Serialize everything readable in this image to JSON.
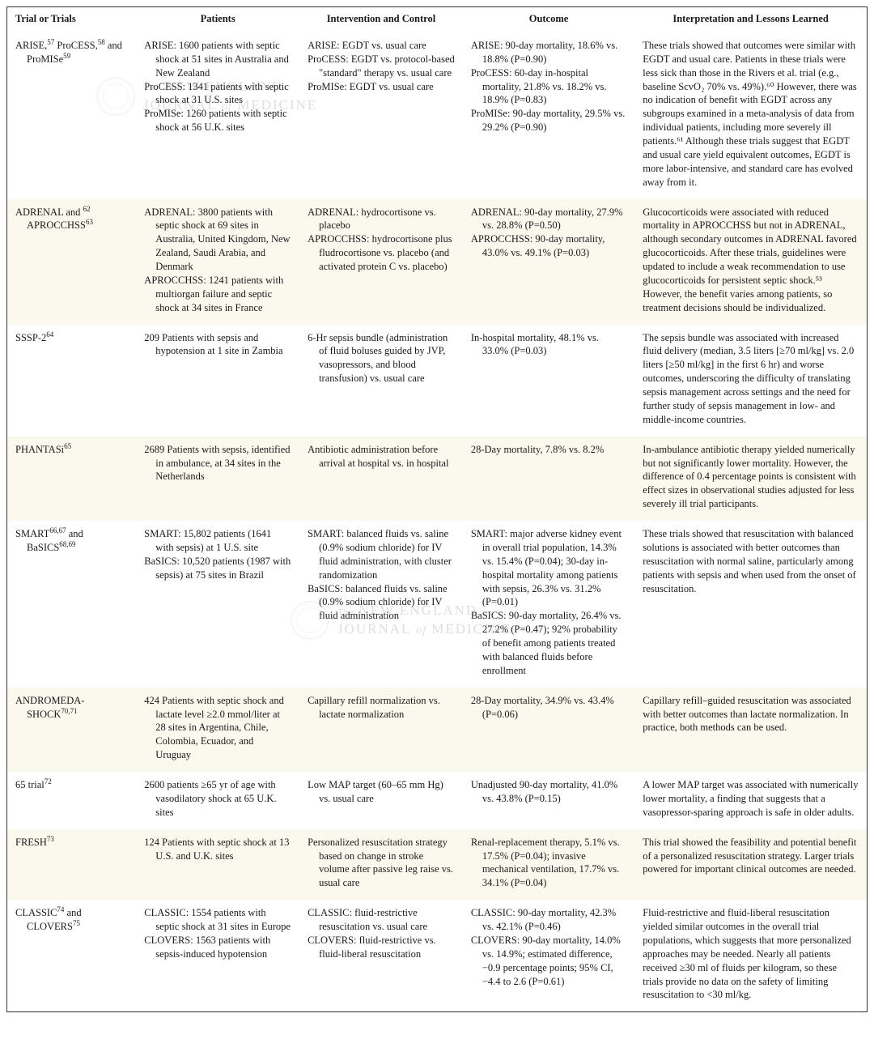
{
  "colors": {
    "alt_row_bg": "#fbf8ee",
    "border": "#333333",
    "text": "#1a1a1a",
    "watermark_seal": "#cc9999"
  },
  "headers": {
    "c1": "Trial or Trials",
    "c2": "Patients",
    "c3": "Intervention and Control",
    "c4": "Outcome",
    "c5": "Interpretation and Lessons Learned"
  },
  "watermark": {
    "line1_pre": "The",
    "line1_main": "NEW ENGLAND",
    "line2_main": "JOURNAL",
    "line2_of": "of",
    "line2_end": "MEDICINE"
  },
  "rows": [
    {
      "trial_parts": [
        "ARISE,",
        "57",
        " ProCESS,",
        "58",
        " and ProMISe",
        "59"
      ],
      "patients": [
        "ARISE: 1600 patients with septic shock at 51 sites in Australia and New Zealand",
        "ProCESS: 1341 patients with septic shock at 31 U.S. sites",
        "ProMISe: 1260 patients with septic shock at 56 U.K. sites"
      ],
      "intervention": [
        "ARISE: EGDT vs. usual care",
        "ProCESS: EGDT vs. protocol-based \"standard\" therapy vs. usual care",
        "ProMISe: EGDT vs. usual care"
      ],
      "outcome": [
        "ARISE: 90-day mortality, 18.6% vs. 18.8% (P=0.90)",
        "ProCESS: 60-day in-hospital mortality, 21.8% vs. 18.2% vs. 18.9% (P=0.83)",
        "ProMISe: 90-day mortality, 29.5% vs. 29.2% (P=0.90)"
      ],
      "interp": "These trials showed that outcomes were similar with EGDT and usual care. Patients in these trials were less sick than those in the Rivers et al. trial (e.g., baseline ScvO₂ 70% vs. 49%).⁶⁰ However, there was no indication of benefit with EGDT across any subgroups examined in a meta-analysis of data from individual patients, including more severely ill patients.⁶¹ Although these trials suggest that EGDT and usual care yield equivalent outcomes, EGDT is more labor-intensive, and standard care has evolved away from it."
    },
    {
      "trial_parts": [
        "ADRENAL and ",
        "62",
        " APROCCHSS",
        "63"
      ],
      "patients": [
        "ADRENAL: 3800 patients with septic shock at 69 sites in Australia, United Kingdom, New Zealand, Saudi Arabia, and Denmark",
        "APROCCHSS: 1241 patients with multiorgan failure and septic shock at 34 sites in France"
      ],
      "intervention": [
        "ADRENAL: hydrocortisone vs. placebo",
        "APROCCHSS: hydrocortisone plus fludrocortisone vs. placebo (and activated protein C vs. placebo)"
      ],
      "outcome": [
        "ADRENAL: 90-day mortality, 27.9% vs. 28.8% (P=0.50)",
        "APROCCHSS: 90-day mortality, 43.0% vs. 49.1% (P=0.03)"
      ],
      "interp": "Glucocorticoids were associated with reduced mortality in APROCCHSS but not in ADRENAL, although secondary outcomes in ADRENAL favored glucocorticoids. After these trials, guidelines were updated to include a weak recommendation to use glucocorticoids for persistent septic shock.⁵³ However, the benefit varies among patients, so treatment decisions should be individualized."
    },
    {
      "trial_parts": [
        "SSSP-2",
        "64"
      ],
      "patients": [
        "209 Patients with sepsis and hypotension at 1 site in Zambia"
      ],
      "intervention": [
        "6-Hr sepsis bundle (administration of fluid boluses guided by JVP, vasopressors, and blood transfusion) vs. usual care"
      ],
      "outcome": [
        "In-hospital mortality, 48.1% vs. 33.0% (P=0.03)"
      ],
      "interp": "The sepsis bundle was associated with increased fluid delivery (median, 3.5 liters [≥70 ml/kg] vs. 2.0 liters [≥50 ml/kg] in the first 6 hr) and worse outcomes, underscoring the difficulty of translating sepsis management across settings and the need for further study of sepsis management in low- and middle-income countries."
    },
    {
      "trial_parts": [
        "PHANTASi",
        "65"
      ],
      "patients": [
        "2689 Patients with sepsis, identified in ambulance, at 34 sites in the Netherlands"
      ],
      "intervention": [
        "Antibiotic administration before arrival at hospital vs. in hospital"
      ],
      "outcome": [
        "28-Day mortality, 7.8% vs. 8.2%"
      ],
      "interp": "In-ambulance antibiotic therapy yielded numerically but not significantly lower mortality. However, the difference of 0.4 percentage points is consistent with effect sizes in observational studies adjusted for less severely ill trial participants."
    },
    {
      "trial_parts": [
        "SMART",
        "66,67",
        " and BaSICS",
        "68,69"
      ],
      "patients": [
        "SMART: 15,802 patients (1641 with sepsis) at 1 U.S. site",
        "BaSICS: 10,520 patients (1987 with sepsis) at 75 sites in Brazil"
      ],
      "intervention": [
        "SMART: balanced fluids vs. saline (0.9% sodium chloride) for IV fluid administration, with cluster randomization",
        "BaSICS: balanced fluids vs. saline (0.9% sodium chloride) for IV fluid administration"
      ],
      "outcome": [
        "SMART: major adverse kidney event in overall trial population, 14.3% vs. 15.4% (P=0.04); 30-day in-hospital mortality among patients with sepsis, 26.3% vs. 31.2% (P=0.01)",
        "BaSICS: 90-day mortality, 26.4% vs. 27.2% (P=0.47); 92% probability of benefit among patients treated with balanced fluids before enrollment"
      ],
      "interp": "These trials showed that resuscitation with balanced solutions is associated with better outcomes than resuscitation with normal saline, particularly among patients with sepsis and when used from the onset of resuscitation."
    },
    {
      "trial_parts": [
        "ANDROMEDA-SHOCK",
        "70,71"
      ],
      "patients": [
        "424 Patients with septic shock and lactate level ≥2.0 mmol/liter at 28 sites in Argentina, Chile, Colombia, Ecuador, and Uruguay"
      ],
      "intervention": [
        "Capillary refill normalization vs. lactate normalization"
      ],
      "outcome": [
        "28-Day mortality, 34.9% vs. 43.4% (P=0.06)"
      ],
      "interp": "Capillary refill–guided resuscitation was associated with better outcomes than lactate normalization. In practice, both methods can be used."
    },
    {
      "trial_parts": [
        "65 trial",
        "72"
      ],
      "patients": [
        "2600 patients ≥65 yr of age with vasodilatory shock at 65 U.K. sites"
      ],
      "intervention": [
        "Low MAP target (60–65 mm Hg) vs. usual care"
      ],
      "outcome": [
        "Unadjusted 90-day mortality, 41.0% vs. 43.8% (P=0.15)"
      ],
      "interp": "A lower MAP target was associated with numerically lower mortality, a finding that suggests that a vasopressor-sparing approach is safe in older adults."
    },
    {
      "trial_parts": [
        "FRESH",
        "73"
      ],
      "patients": [
        "124 Patients with septic shock at 13 U.S. and U.K. sites"
      ],
      "intervention": [
        "Personalized resuscitation strategy based on change in stroke volume after passive leg raise vs. usual care"
      ],
      "outcome": [
        "Renal-replacement therapy, 5.1% vs. 17.5% (P=0.04); invasive mechanical ventilation, 17.7% vs. 34.1% (P=0.04)"
      ],
      "interp": "This trial showed the feasibility and potential benefit of a personalized resuscitation strategy. Larger trials powered for important clinical outcomes are needed."
    },
    {
      "trial_parts": [
        "CLASSIC",
        "74",
        " and CLOVERS",
        "75"
      ],
      "patients": [
        "CLASSIC: 1554 patients with septic shock at 31 sites in Europe",
        "CLOVERS: 1563 patients with sepsis-induced hypotension"
      ],
      "intervention": [
        "CLASSIC: fluid-restrictive resuscitation vs. usual care",
        "CLOVERS: fluid-restrictive vs. fluid-liberal resuscitation"
      ],
      "outcome": [
        "CLASSIC: 90-day mortality, 42.3% vs. 42.1% (P=0.46)",
        "CLOVERS: 90-day mortality, 14.0% vs. 14.9%; estimated difference, −0.9 percentage points; 95% CI, −4.4 to 2.6 (P=0.61)"
      ],
      "interp": "Fluid-restrictive and fluid-liberal resuscitation yielded similar outcomes in the overall trial populations, which suggests that more personalized approaches may be needed. Nearly all patients received ≥30 ml of fluids per kilogram, so these trials provide no data on the safety of limiting resuscitation to <30 ml/kg."
    }
  ]
}
